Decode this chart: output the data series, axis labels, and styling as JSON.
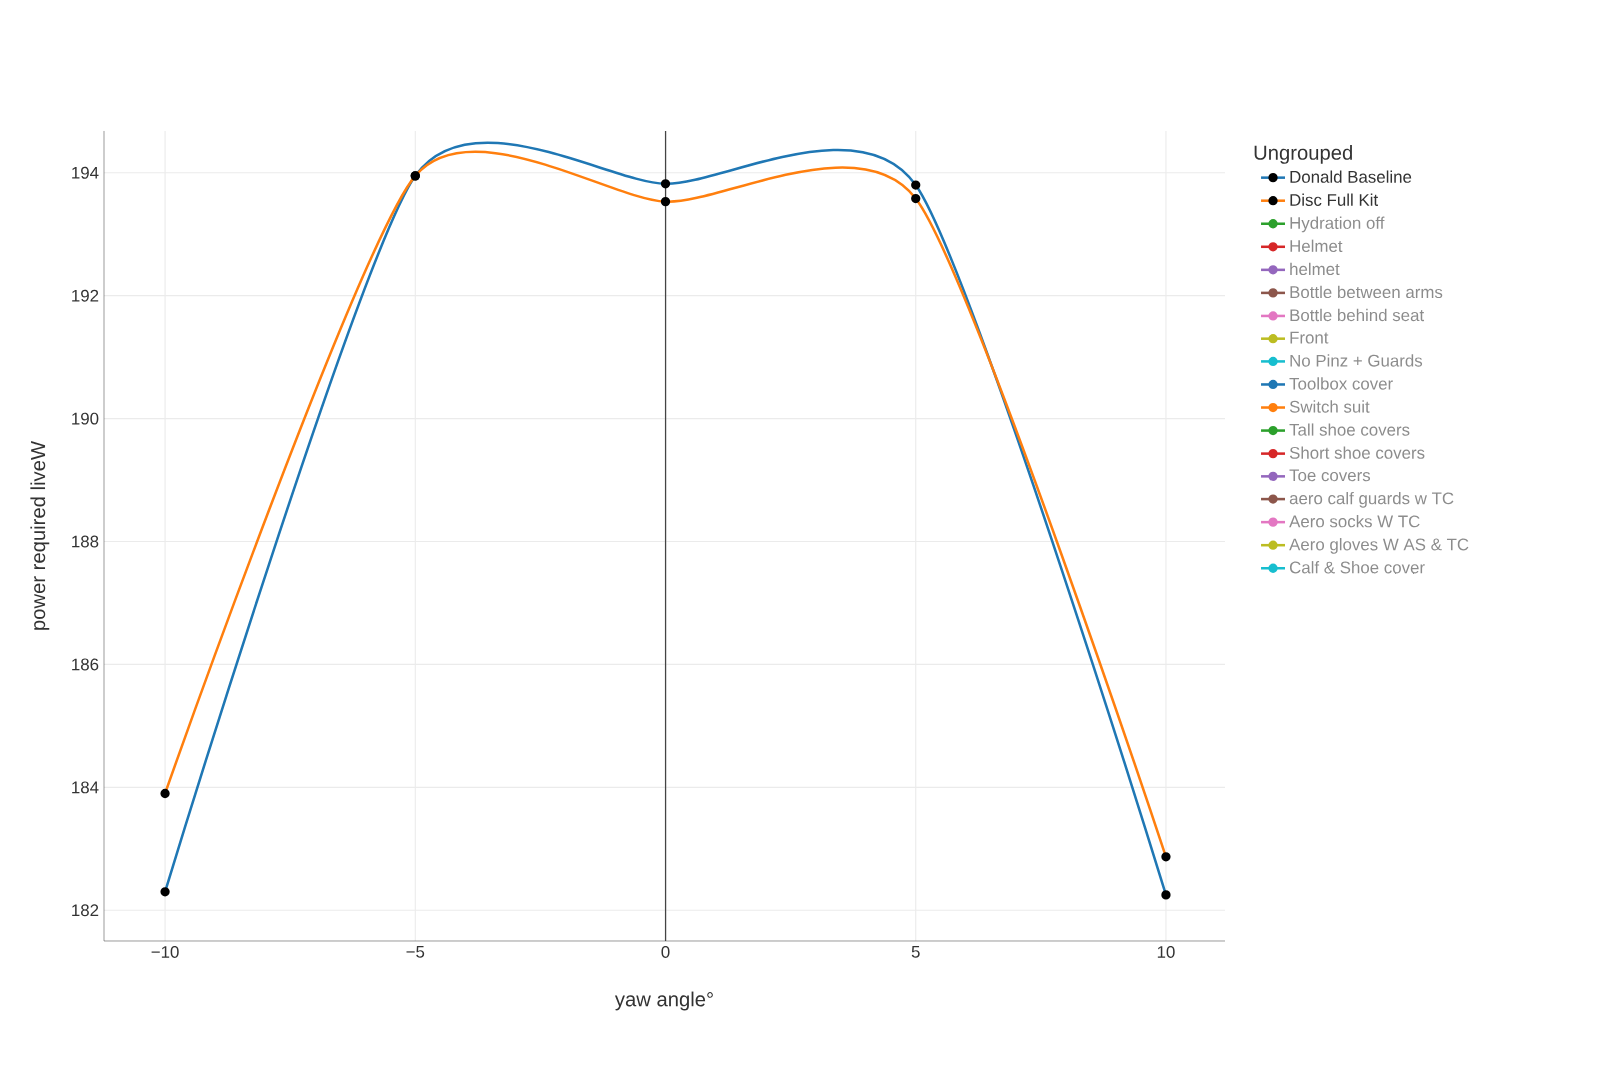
{
  "chart_data": {
    "type": "line",
    "xlabel": "yaw angle°",
    "ylabel": "power required liveW",
    "legend_title": "Ungrouped",
    "x": [
      -10,
      -5,
      0,
      5,
      10
    ],
    "series": [
      {
        "name": "Donald Baseline",
        "color": "#1f77b4",
        "values": [
          182.3,
          193.95,
          193.82,
          193.8,
          182.25
        ]
      },
      {
        "name": "Disc Full Kit",
        "color": "#ff7f0e",
        "values": [
          183.9,
          193.95,
          193.53,
          193.58,
          182.87
        ]
      },
      {
        "name": "Hydration off",
        "color": "#2ca02c",
        "values": [
          null,
          null,
          null,
          null,
          null
        ]
      },
      {
        "name": "Helmet",
        "color": "#d62728",
        "values": [
          null,
          null,
          null,
          null,
          null
        ]
      },
      {
        "name": "helmet",
        "color": "#9467bd",
        "values": [
          null,
          null,
          null,
          null,
          null
        ]
      },
      {
        "name": "Bottle between arms",
        "color": "#8c564b",
        "values": [
          null,
          null,
          null,
          null,
          null
        ]
      },
      {
        "name": "Bottle behind seat",
        "color": "#e377c2",
        "values": [
          null,
          null,
          null,
          null,
          null
        ]
      },
      {
        "name": "Front",
        "color": "#bcbd22",
        "values": [
          null,
          null,
          null,
          null,
          null
        ]
      },
      {
        "name": "No Pinz + Guards",
        "color": "#17becf",
        "values": [
          null,
          null,
          null,
          null,
          null
        ]
      },
      {
        "name": "Toolbox cover",
        "color": "#1f77b4",
        "values": [
          null,
          null,
          null,
          null,
          null
        ]
      },
      {
        "name": "Switch suit",
        "color": "#ff7f0e",
        "values": [
          null,
          null,
          null,
          null,
          null
        ]
      },
      {
        "name": "Tall shoe covers",
        "color": "#2ca02c",
        "values": [
          null,
          null,
          null,
          null,
          null
        ]
      },
      {
        "name": "Short shoe covers",
        "color": "#d62728",
        "values": [
          null,
          null,
          null,
          null,
          null
        ]
      },
      {
        "name": "Toe covers",
        "color": "#9467bd",
        "values": [
          null,
          null,
          null,
          null,
          null
        ]
      },
      {
        "name": "aero calf guards w TC",
        "color": "#8c564b",
        "values": [
          null,
          null,
          null,
          null,
          null
        ]
      },
      {
        "name": "Aero socks W TC",
        "color": "#e377c2",
        "values": [
          null,
          null,
          null,
          null,
          null
        ]
      },
      {
        "name": "Aero gloves W AS & TC",
        "color": "#bcbd22",
        "values": [
          null,
          null,
          null,
          null,
          null
        ]
      },
      {
        "name": "Calf & Shoe cover",
        "color": "#17becf",
        "values": [
          null,
          null,
          null,
          null,
          null
        ]
      }
    ],
    "xlim": [
      -11.22,
      11.18
    ],
    "ylim": [
      181.5,
      194.68
    ],
    "xticks": [
      {
        "value": -10,
        "label": "−10"
      },
      {
        "value": -5,
        "label": "−5"
      },
      0,
      5,
      10
    ],
    "yticks": [
      182,
      184,
      186,
      188,
      190,
      192,
      194
    ],
    "ref_lines": [
      {
        "axis": "x",
        "value": 0,
        "color": "#444444"
      }
    ],
    "grid": true,
    "legend": "top right",
    "marker": "circle",
    "line_style": "solid"
  }
}
